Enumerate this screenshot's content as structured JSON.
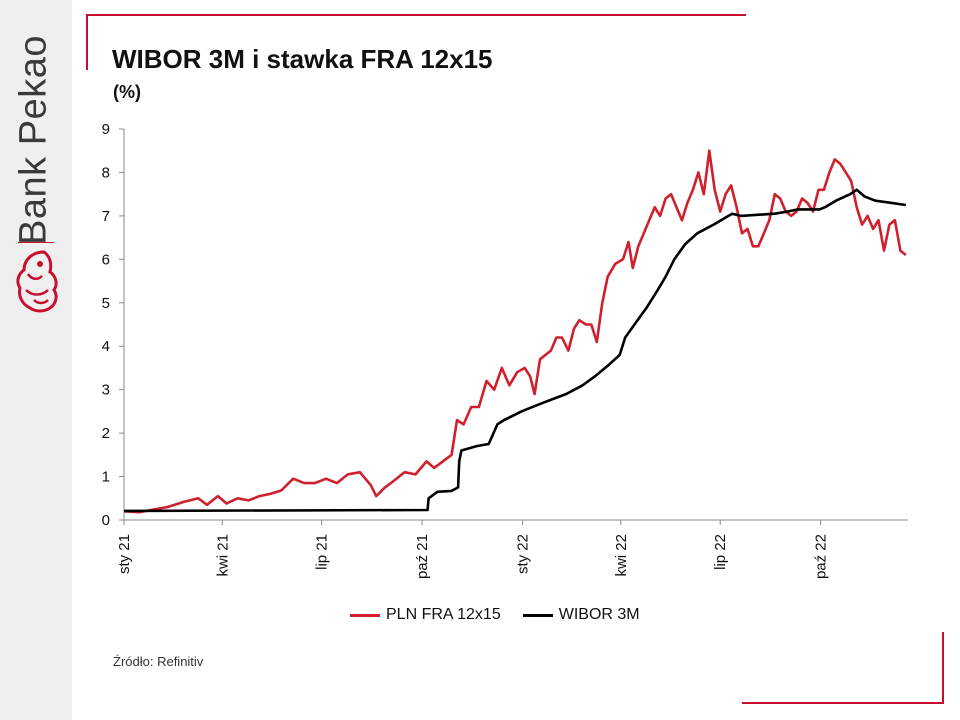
{
  "brand": {
    "name": "Bank Pekao",
    "accent": "#c8102e"
  },
  "title": "WIBOR 3M i stawka FRA 12x15",
  "subtitle": "(%)",
  "source": "Źródło: Refinitiv",
  "chart_data": {
    "type": "line",
    "ylim": [
      0,
      9
    ],
    "yticks": [
      0,
      1,
      2,
      3,
      4,
      5,
      6,
      7,
      8,
      9
    ],
    "x_range": [
      "2021-01-01",
      "2022-12-20"
    ],
    "xticks": [
      {
        "date": "2021-01-01",
        "label": "sty 21"
      },
      {
        "date": "2021-04-01",
        "label": "kwi 21"
      },
      {
        "date": "2021-07-01",
        "label": "lip 21"
      },
      {
        "date": "2021-10-01",
        "label": "paź 21"
      },
      {
        "date": "2022-01-01",
        "label": "sty 22"
      },
      {
        "date": "2022-04-01",
        "label": "kwi 22"
      },
      {
        "date": "2022-07-01",
        "label": "lip 22"
      },
      {
        "date": "2022-10-01",
        "label": "paź 22"
      }
    ],
    "legend_position": "bottom",
    "series": [
      {
        "name": "PLN FRA 12x15",
        "color": "#d0202e",
        "points": [
          [
            "2021-01-01",
            0.2
          ],
          [
            "2021-01-15",
            0.18
          ],
          [
            "2021-01-30",
            0.25
          ],
          [
            "2021-02-10",
            0.3
          ],
          [
            "2021-02-25",
            0.42
          ],
          [
            "2021-03-10",
            0.5
          ],
          [
            "2021-03-18",
            0.35
          ],
          [
            "2021-03-28",
            0.55
          ],
          [
            "2021-04-05",
            0.38
          ],
          [
            "2021-04-15",
            0.5
          ],
          [
            "2021-04-25",
            0.45
          ],
          [
            "2021-05-05",
            0.55
          ],
          [
            "2021-05-15",
            0.6
          ],
          [
            "2021-05-25",
            0.68
          ],
          [
            "2021-06-05",
            0.95
          ],
          [
            "2021-06-15",
            0.85
          ],
          [
            "2021-06-25",
            0.85
          ],
          [
            "2021-07-05",
            0.95
          ],
          [
            "2021-07-15",
            0.85
          ],
          [
            "2021-07-25",
            1.05
          ],
          [
            "2021-08-05",
            1.1
          ],
          [
            "2021-08-15",
            0.8
          ],
          [
            "2021-08-20",
            0.55
          ],
          [
            "2021-08-28",
            0.75
          ],
          [
            "2021-09-05",
            0.9
          ],
          [
            "2021-09-15",
            1.1
          ],
          [
            "2021-09-25",
            1.05
          ],
          [
            "2021-10-05",
            1.35
          ],
          [
            "2021-10-12",
            1.2
          ],
          [
            "2021-10-20",
            1.35
          ],
          [
            "2021-10-28",
            1.5
          ],
          [
            "2021-11-02",
            2.3
          ],
          [
            "2021-11-08",
            2.2
          ],
          [
            "2021-11-15",
            2.6
          ],
          [
            "2021-11-22",
            2.6
          ],
          [
            "2021-11-29",
            3.2
          ],
          [
            "2021-12-06",
            3.0
          ],
          [
            "2021-12-13",
            3.5
          ],
          [
            "2021-12-20",
            3.1
          ],
          [
            "2021-12-27",
            3.4
          ],
          [
            "2022-01-03",
            3.5
          ],
          [
            "2022-01-08",
            3.3
          ],
          [
            "2022-01-12",
            2.9
          ],
          [
            "2022-01-17",
            3.7
          ],
          [
            "2022-01-22",
            3.8
          ],
          [
            "2022-01-27",
            3.9
          ],
          [
            "2022-02-01",
            4.2
          ],
          [
            "2022-02-06",
            4.2
          ],
          [
            "2022-02-12",
            3.9
          ],
          [
            "2022-02-17",
            4.4
          ],
          [
            "2022-02-22",
            4.6
          ],
          [
            "2022-02-28",
            4.5
          ],
          [
            "2022-03-05",
            4.5
          ],
          [
            "2022-03-10",
            4.1
          ],
          [
            "2022-03-15",
            5.0
          ],
          [
            "2022-03-20",
            5.6
          ],
          [
            "2022-03-27",
            5.9
          ],
          [
            "2022-04-03",
            6.0
          ],
          [
            "2022-04-08",
            6.4
          ],
          [
            "2022-04-12",
            5.8
          ],
          [
            "2022-04-17",
            6.3
          ],
          [
            "2022-04-22",
            6.6
          ],
          [
            "2022-04-27",
            6.9
          ],
          [
            "2022-05-02",
            7.2
          ],
          [
            "2022-05-07",
            7.0
          ],
          [
            "2022-05-12",
            7.4
          ],
          [
            "2022-05-17",
            7.5
          ],
          [
            "2022-05-22",
            7.2
          ],
          [
            "2022-05-27",
            6.9
          ],
          [
            "2022-06-01",
            7.3
          ],
          [
            "2022-06-06",
            7.6
          ],
          [
            "2022-06-11",
            8.0
          ],
          [
            "2022-06-16",
            7.5
          ],
          [
            "2022-06-21",
            8.5
          ],
          [
            "2022-06-26",
            7.6
          ],
          [
            "2022-07-01",
            7.1
          ],
          [
            "2022-07-06",
            7.5
          ],
          [
            "2022-07-11",
            7.7
          ],
          [
            "2022-07-16",
            7.2
          ],
          [
            "2022-07-21",
            6.6
          ],
          [
            "2022-07-26",
            6.7
          ],
          [
            "2022-07-31",
            6.3
          ],
          [
            "2022-08-05",
            6.3
          ],
          [
            "2022-08-10",
            6.6
          ],
          [
            "2022-08-15",
            6.9
          ],
          [
            "2022-08-20",
            7.5
          ],
          [
            "2022-08-25",
            7.4
          ],
          [
            "2022-08-30",
            7.1
          ],
          [
            "2022-09-04",
            7.0
          ],
          [
            "2022-09-09",
            7.1
          ],
          [
            "2022-09-14",
            7.4
          ],
          [
            "2022-09-19",
            7.3
          ],
          [
            "2022-09-24",
            7.1
          ],
          [
            "2022-09-29",
            7.6
          ],
          [
            "2022-10-04",
            7.6
          ],
          [
            "2022-10-09",
            8.0
          ],
          [
            "2022-10-14",
            8.3
          ],
          [
            "2022-10-19",
            8.2
          ],
          [
            "2022-10-24",
            8.0
          ],
          [
            "2022-10-29",
            7.8
          ],
          [
            "2022-11-03",
            7.2
          ],
          [
            "2022-11-08",
            6.8
          ],
          [
            "2022-11-13",
            7.0
          ],
          [
            "2022-11-18",
            6.7
          ],
          [
            "2022-11-23",
            6.9
          ],
          [
            "2022-11-28",
            6.2
          ],
          [
            "2022-12-03",
            6.8
          ],
          [
            "2022-12-08",
            6.9
          ],
          [
            "2022-12-13",
            6.2
          ],
          [
            "2022-12-18",
            6.1
          ]
        ]
      },
      {
        "name": "WIBOR 3M",
        "color": "#000000",
        "points": [
          [
            "2021-01-01",
            0.21
          ],
          [
            "2021-10-06",
            0.23
          ],
          [
            "2021-10-07",
            0.5
          ],
          [
            "2021-10-15",
            0.65
          ],
          [
            "2021-10-28",
            0.67
          ],
          [
            "2021-11-03",
            0.75
          ],
          [
            "2021-11-04",
            1.35
          ],
          [
            "2021-11-06",
            1.6
          ],
          [
            "2021-11-20",
            1.7
          ],
          [
            "2021-12-01",
            1.75
          ],
          [
            "2021-12-09",
            2.2
          ],
          [
            "2021-12-15",
            2.3
          ],
          [
            "2021-12-31",
            2.5
          ],
          [
            "2022-01-05",
            2.55
          ],
          [
            "2022-01-20",
            2.7
          ],
          [
            "2022-02-10",
            2.9
          ],
          [
            "2022-02-25",
            3.1
          ],
          [
            "2022-03-08",
            3.3
          ],
          [
            "2022-03-20",
            3.55
          ],
          [
            "2022-03-31",
            3.8
          ],
          [
            "2022-04-05",
            4.2
          ],
          [
            "2022-04-15",
            4.55
          ],
          [
            "2022-04-25",
            4.9
          ],
          [
            "2022-05-05",
            5.3
          ],
          [
            "2022-05-12",
            5.6
          ],
          [
            "2022-05-20",
            6.0
          ],
          [
            "2022-05-30",
            6.35
          ],
          [
            "2022-06-10",
            6.6
          ],
          [
            "2022-06-25",
            6.8
          ],
          [
            "2022-07-05",
            6.95
          ],
          [
            "2022-07-12",
            7.05
          ],
          [
            "2022-07-20",
            7.0
          ],
          [
            "2022-08-20",
            7.05
          ],
          [
            "2022-09-01",
            7.1
          ],
          [
            "2022-09-10",
            7.15
          ],
          [
            "2022-09-30",
            7.15
          ],
          [
            "2022-10-05",
            7.2
          ],
          [
            "2022-10-15",
            7.35
          ],
          [
            "2022-10-28",
            7.5
          ],
          [
            "2022-11-03",
            7.6
          ],
          [
            "2022-11-10",
            7.45
          ],
          [
            "2022-11-20",
            7.35
          ],
          [
            "2022-12-05",
            7.3
          ],
          [
            "2022-12-18",
            7.25
          ]
        ]
      }
    ]
  }
}
